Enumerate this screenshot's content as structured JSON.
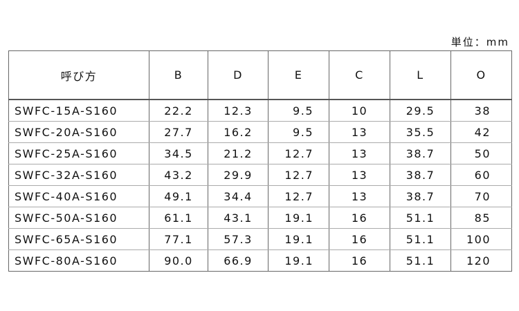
{
  "unit": "単位：mm",
  "table": {
    "header": [
      "呼び方",
      "B",
      "D",
      "E",
      "C",
      "L",
      "O"
    ],
    "rows": [
      [
        "SWFC-15A-S160",
        "22.2",
        "12.3",
        "9.5",
        "10",
        "29.5",
        "38"
      ],
      [
        "SWFC-20A-S160",
        "27.7",
        "16.2",
        "9.5",
        "13",
        "35.5",
        "42"
      ],
      [
        "SWFC-25A-S160",
        "34.5",
        "21.2",
        "12.7",
        "13",
        "38.7",
        "50"
      ],
      [
        "SWFC-32A-S160",
        "43.2",
        "29.9",
        "12.7",
        "13",
        "38.7",
        "60"
      ],
      [
        "SWFC-40A-S160",
        "49.1",
        "34.4",
        "12.7",
        "13",
        "38.7",
        "70"
      ],
      [
        "SWFC-50A-S160",
        "61.1",
        "43.1",
        "19.1",
        "16",
        "51.1",
        "85"
      ],
      [
        "SWFC-65A-S160",
        "77.1",
        "57.3",
        "19.1",
        "16",
        "51.1",
        "100"
      ],
      [
        "SWFC-80A-S160",
        "90.0",
        "66.9",
        "19.1",
        "16",
        "51.1",
        "120"
      ]
    ]
  }
}
